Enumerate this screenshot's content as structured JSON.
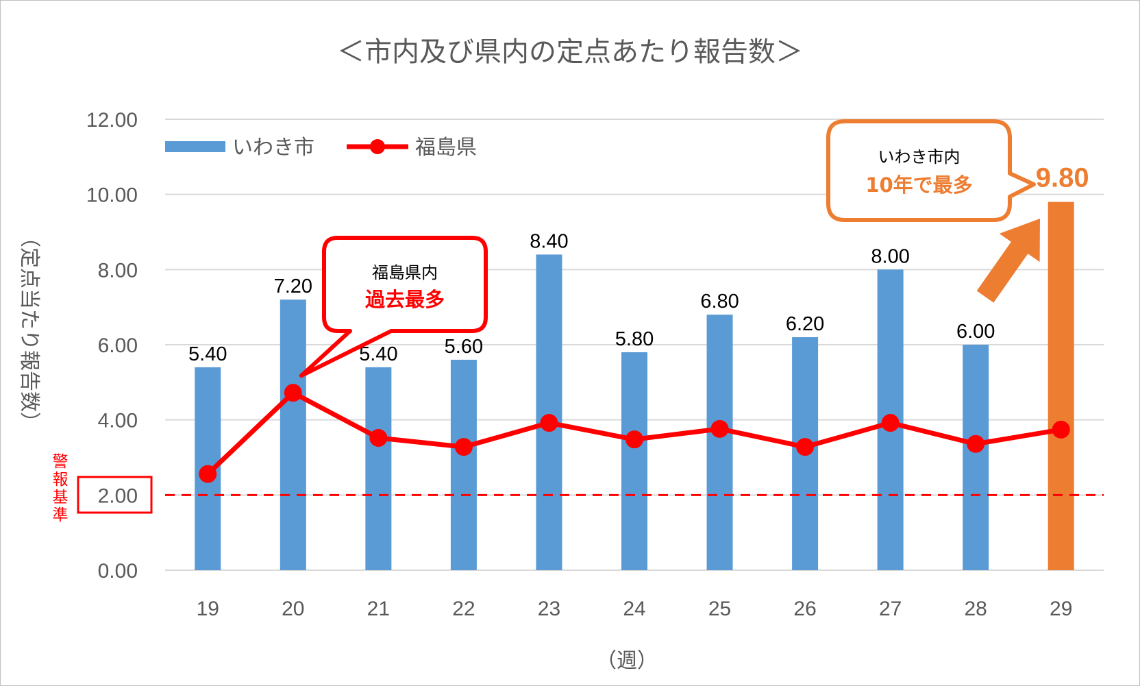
{
  "chart_data": {
    "type": "bar",
    "title": "＜市内及び県内の定点あたり報告数＞",
    "xlabel": "（週）",
    "ylabel": "（定点当たり報告数）",
    "ylim": [
      0,
      12
    ],
    "y_ticks": [
      "0.00",
      "2.00",
      "4.00",
      "6.00",
      "8.00",
      "10.00",
      "12.00"
    ],
    "categories": [
      "19",
      "20",
      "21",
      "22",
      "23",
      "24",
      "25",
      "26",
      "27",
      "28",
      "29"
    ],
    "series": [
      {
        "name": "いわき市",
        "kind": "bar",
        "color": "#5b9bd5",
        "highlight_color": "#ed7d31",
        "highlight_index": 10,
        "values": [
          5.4,
          7.2,
          5.4,
          5.6,
          8.4,
          5.8,
          6.8,
          6.2,
          8.0,
          6.0,
          9.8
        ],
        "labels": [
          "5.40",
          "7.20",
          "5.40",
          "5.60",
          "8.40",
          "5.80",
          "6.80",
          "6.20",
          "8.00",
          "6.00",
          "9.80"
        ]
      },
      {
        "name": "福島県",
        "kind": "line",
        "color": "#ff0000",
        "values": [
          2.56,
          4.72,
          3.52,
          3.28,
          3.92,
          3.48,
          3.76,
          3.28,
          3.92,
          3.36,
          3.74
        ]
      }
    ],
    "threshold": {
      "value": 2.0,
      "label": "警報基準",
      "color": "#ff0000",
      "style": "dashed"
    },
    "legend": "top-left",
    "grid": true,
    "annotations": [
      {
        "id": "fukushima",
        "line1": "福島県内",
        "line2": "過去最多",
        "border_color": "#ff0000",
        "line2_color": "#ff0000",
        "target_category": "20"
      },
      {
        "id": "iwaki",
        "line1": "いわき市内",
        "line2": "10年で最多",
        "border_color": "#ed7d31",
        "line2_color": "#ed7d31",
        "target_category": "29"
      }
    ]
  }
}
